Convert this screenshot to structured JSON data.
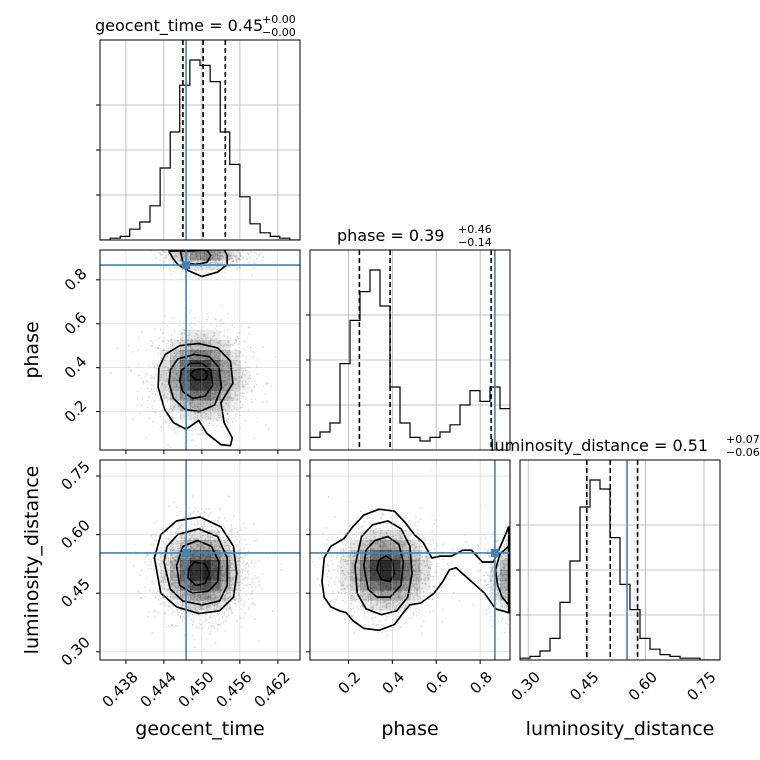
{
  "chart_data": {
    "type": "corner",
    "parameters": [
      "geocent_time",
      "phase",
      "luminosity_distance"
    ],
    "panel_titles": [
      {
        "parameter": "geocent_time",
        "text": "geocent_time = 0.45",
        "plus": "+0.00",
        "minus": "−0.00"
      },
      {
        "parameter": "phase",
        "text": "phase = 0.39",
        "plus": "+0.46",
        "minus": "−0.14"
      },
      {
        "parameter": "luminosity_distance",
        "text": "luminosity_distance = 0.51",
        "plus": "+0.07",
        "minus": "−0.06"
      }
    ],
    "axis_labels": {
      "x": [
        "geocent_time",
        "phase",
        "luminosity_distance"
      ],
      "y": [
        "phase",
        "luminosity_distance"
      ]
    },
    "ranges": {
      "geocent_time": [
        0.4339,
        0.4655
      ],
      "phase": [
        0.0252,
        0.9358
      ],
      "luminosity_distance": [
        0.279,
        0.791
      ]
    },
    "ticks": {
      "geocent_time": [
        "0.438",
        "0.444",
        "0.450",
        "0.456",
        "0.462"
      ],
      "phase": [
        "0.2",
        "0.4",
        "0.6",
        "0.8"
      ],
      "luminosity_distance": [
        "0.30",
        "0.45",
        "0.60",
        "0.75"
      ]
    },
    "truths": {
      "geocent_time": 0.4475,
      "phase": 0.867,
      "luminosity_distance": 0.553
    },
    "quantiles": {
      "geocent_time": [
        0.447,
        0.4502,
        0.4537
      ],
      "phase": [
        0.25,
        0.39,
        0.85
      ],
      "luminosity_distance": [
        0.45,
        0.51,
        0.58
      ]
    },
    "histograms": {
      "geocent_time": {
        "edges": [
          0.4339,
          0.4355,
          0.4371,
          0.4386,
          0.4402,
          0.4418,
          0.4434,
          0.445,
          0.4465,
          0.4481,
          0.4497,
          0.4513,
          0.4529,
          0.4544,
          0.456,
          0.4576,
          0.4592,
          0.4608,
          0.4623,
          0.4639,
          0.4655
        ],
        "counts": [
          0,
          1,
          2,
          6,
          10,
          19,
          40,
          60,
          86,
          100,
          97,
          88,
          60,
          42,
          24,
          9,
          4,
          2,
          1,
          0
        ]
      },
      "phase": {
        "edges": [
          0.0252,
          0.0707,
          0.1162,
          0.1618,
          0.2073,
          0.2528,
          0.2984,
          0.3439,
          0.3894,
          0.435,
          0.4805,
          0.526,
          0.5716,
          0.6171,
          0.6626,
          0.7082,
          0.7537,
          0.7992,
          0.8447,
          0.8903,
          0.9358
        ],
        "counts": [
          7,
          10,
          15,
          48,
          72,
          88,
          100,
          80,
          35,
          15,
          7,
          5,
          7,
          10,
          14,
          25,
          33,
          27,
          35,
          23
        ]
      },
      "luminosity_distance": {
        "edges": [
          0.279,
          0.3046,
          0.3302,
          0.3558,
          0.3814,
          0.407,
          0.4326,
          0.4582,
          0.4838,
          0.5094,
          0.535,
          0.5606,
          0.5862,
          0.6118,
          0.6374,
          0.663,
          0.6886,
          0.7142,
          0.7398,
          0.7654,
          0.791
        ],
        "counts": [
          1,
          2,
          5,
          12,
          32,
          55,
          85,
          100,
          95,
          68,
          42,
          28,
          12,
          6,
          3,
          2,
          1,
          1,
          0,
          0
        ]
      }
    },
    "pairs": [
      {
        "x": "geocent_time",
        "y": "phase",
        "modes": [
          {
            "x": 0.4498,
            "y": 0.36,
            "sx": 0.0029,
            "sy": 0.085,
            "w": 1.0
          },
          {
            "x": 0.4502,
            "y": 0.92,
            "sx": 0.0026,
            "sy": 0.03,
            "w": 0.45
          }
        ],
        "contours": [
          [
            [
              0.4431,
              0.31
            ],
            [
              0.4441,
              0.21
            ],
            [
              0.4455,
              0.15
            ],
            [
              0.4475,
              0.12
            ],
            [
              0.4495,
              0.16
            ],
            [
              0.4508,
              0.1
            ],
            [
              0.453,
              0.05
            ],
            [
              0.4545,
              0.045
            ],
            [
              0.4548,
              0.08
            ],
            [
              0.4535,
              0.15
            ],
            [
              0.453,
              0.24
            ],
            [
              0.4549,
              0.33
            ],
            [
              0.4545,
              0.43
            ],
            [
              0.4525,
              0.49
            ],
            [
              0.4495,
              0.51
            ],
            [
              0.4465,
              0.5
            ],
            [
              0.4442,
              0.46
            ],
            [
              0.4432,
              0.4
            ]
          ],
          [
            [
              0.4448,
              0.33
            ],
            [
              0.4455,
              0.26
            ],
            [
              0.4473,
              0.21
            ],
            [
              0.4496,
              0.2
            ],
            [
              0.452,
              0.23
            ],
            [
              0.4531,
              0.31
            ],
            [
              0.4527,
              0.4
            ],
            [
              0.4512,
              0.45
            ],
            [
              0.4488,
              0.46
            ],
            [
              0.4462,
              0.44
            ],
            [
              0.445,
              0.39
            ]
          ],
          [
            [
              0.4465,
              0.34
            ],
            [
              0.447,
              0.29
            ],
            [
              0.4486,
              0.26
            ],
            [
              0.4505,
              0.27
            ],
            [
              0.4517,
              0.32
            ],
            [
              0.4514,
              0.39
            ],
            [
              0.45,
              0.42
            ],
            [
              0.4482,
              0.42
            ],
            [
              0.4468,
              0.39
            ]
          ],
          [
            [
              0.4482,
              0.37
            ],
            [
              0.449,
              0.345
            ],
            [
              0.4505,
              0.345
            ],
            [
              0.451,
              0.37
            ],
            [
              0.4502,
              0.395
            ],
            [
              0.4488,
              0.39
            ]
          ],
          [
            [
              0.4448,
              0.93
            ],
            [
              0.4455,
              0.895
            ],
            [
              0.4462,
              0.87
            ],
            [
              0.448,
              0.84
            ],
            [
              0.45,
              0.815
            ],
            [
              0.4525,
              0.835
            ],
            [
              0.454,
              0.87
            ],
            [
              0.454,
              0.91
            ],
            [
              0.4535,
              0.94
            ]
          ],
          [
            [
              0.4466,
              0.93
            ],
            [
              0.447,
              0.88
            ],
            [
              0.449,
              0.87
            ],
            [
              0.4508,
              0.88
            ],
            [
              0.4514,
              0.91
            ],
            [
              0.4508,
              0.935
            ]
          ]
        ]
      },
      {
        "x": "geocent_time",
        "y": "luminosity_distance",
        "modes": [
          {
            "x": 0.45,
            "y": 0.505,
            "sx": 0.0027,
            "sy": 0.045,
            "w": 1.0
          }
        ],
        "contours": [
          [
            [
              0.4425,
              0.54
            ],
            [
              0.4435,
              0.45
            ],
            [
              0.446,
              0.415
            ],
            [
              0.4495,
              0.398
            ],
            [
              0.4528,
              0.405
            ],
            [
              0.455,
              0.44
            ],
            [
              0.4555,
              0.5
            ],
            [
              0.455,
              0.57
            ],
            [
              0.453,
              0.62
            ],
            [
              0.4497,
              0.645
            ],
            [
              0.446,
              0.635
            ],
            [
              0.4435,
              0.6
            ]
          ],
          [
            [
              0.444,
              0.53
            ],
            [
              0.445,
              0.46
            ],
            [
              0.447,
              0.43
            ],
            [
              0.45,
              0.42
            ],
            [
              0.4528,
              0.43
            ],
            [
              0.454,
              0.47
            ],
            [
              0.454,
              0.54
            ],
            [
              0.4525,
              0.595
            ],
            [
              0.4495,
              0.615
            ],
            [
              0.4462,
              0.6
            ],
            [
              0.4445,
              0.57
            ]
          ],
          [
            [
              0.446,
              0.52
            ],
            [
              0.4465,
              0.47
            ],
            [
              0.4485,
              0.45
            ],
            [
              0.451,
              0.455
            ],
            [
              0.4525,
              0.48
            ],
            [
              0.4527,
              0.53
            ],
            [
              0.4515,
              0.57
            ],
            [
              0.4493,
              0.585
            ],
            [
              0.447,
              0.57
            ]
          ],
          [
            [
              0.4478,
              0.49
            ],
            [
              0.449,
              0.47
            ],
            [
              0.4505,
              0.475
            ],
            [
              0.4512,
              0.5
            ],
            [
              0.4505,
              0.525
            ],
            [
              0.4488,
              0.53
            ],
            [
              0.448,
              0.515
            ]
          ]
        ]
      },
      {
        "x": "phase",
        "y": "luminosity_distance",
        "modes": [
          {
            "x": 0.37,
            "y": 0.51,
            "sx": 0.085,
            "sy": 0.045,
            "w": 1.0
          },
          {
            "x": 0.95,
            "y": 0.49,
            "sx": 0.05,
            "sy": 0.04,
            "w": 0.45
          }
        ],
        "contours": [
          [
            [
              0.08,
              0.48
            ],
            [
              0.09,
              0.44
            ],
            [
              0.12,
              0.415
            ],
            [
              0.16,
              0.405
            ],
            [
              0.19,
              0.4
            ],
            [
              0.22,
              0.38
            ],
            [
              0.27,
              0.36
            ],
            [
              0.34,
              0.355
            ],
            [
              0.41,
              0.37
            ],
            [
              0.45,
              0.4
            ],
            [
              0.48,
              0.42
            ],
            [
              0.53,
              0.425
            ],
            [
              0.59,
              0.45
            ],
            [
              0.63,
              0.48
            ],
            [
              0.66,
              0.51
            ],
            [
              0.69,
              0.515
            ],
            [
              0.73,
              0.495
            ],
            [
              0.78,
              0.47
            ],
            [
              0.82,
              0.45
            ],
            [
              0.87,
              0.41
            ],
            [
              0.93,
              0.4
            ],
            [
              0.93,
              0.62
            ],
            [
              0.9,
              0.58
            ],
            [
              0.86,
              0.53
            ],
            [
              0.81,
              0.53
            ],
            [
              0.76,
              0.56
            ],
            [
              0.72,
              0.56
            ],
            [
              0.67,
              0.545
            ],
            [
              0.62,
              0.545
            ],
            [
              0.58,
              0.54
            ],
            [
              0.54,
              0.58
            ],
            [
              0.5,
              0.6
            ],
            [
              0.46,
              0.63
            ],
            [
              0.41,
              0.66
            ],
            [
              0.34,
              0.665
            ],
            [
              0.27,
              0.65
            ],
            [
              0.22,
              0.62
            ],
            [
              0.18,
              0.59
            ],
            [
              0.12,
              0.57
            ],
            [
              0.09,
              0.54
            ]
          ],
          [
            [
              0.23,
              0.52
            ],
            [
              0.24,
              0.45
            ],
            [
              0.28,
              0.41
            ],
            [
              0.35,
              0.395
            ],
            [
              0.42,
              0.405
            ],
            [
              0.47,
              0.44
            ],
            [
              0.49,
              0.5
            ],
            [
              0.48,
              0.57
            ],
            [
              0.44,
              0.615
            ],
            [
              0.38,
              0.635
            ],
            [
              0.31,
              0.625
            ],
            [
              0.26,
              0.595
            ]
          ],
          [
            [
              0.27,
              0.52
            ],
            [
              0.29,
              0.46
            ],
            [
              0.33,
              0.44
            ],
            [
              0.39,
              0.44
            ],
            [
              0.44,
              0.47
            ],
            [
              0.45,
              0.53
            ],
            [
              0.43,
              0.575
            ],
            [
              0.38,
              0.595
            ],
            [
              0.32,
              0.585
            ],
            [
              0.28,
              0.56
            ]
          ],
          [
            [
              0.33,
              0.51
            ],
            [
              0.35,
              0.485
            ],
            [
              0.39,
              0.48
            ],
            [
              0.41,
              0.5
            ],
            [
              0.4,
              0.535
            ],
            [
              0.37,
              0.545
            ],
            [
              0.34,
              0.535
            ]
          ],
          [
            [
              0.93,
              0.42
            ],
            [
              0.9,
              0.44
            ],
            [
              0.88,
              0.47
            ],
            [
              0.87,
              0.51
            ],
            [
              0.89,
              0.55
            ],
            [
              0.93,
              0.57
            ]
          ]
        ]
      }
    ],
    "colors": {
      "truth": "#4682b4",
      "hist": "#000000",
      "quantile": "#000000",
      "density": "#000000",
      "samples": "#999999",
      "grid": "#b0b0b0"
    },
    "grid": true
  }
}
